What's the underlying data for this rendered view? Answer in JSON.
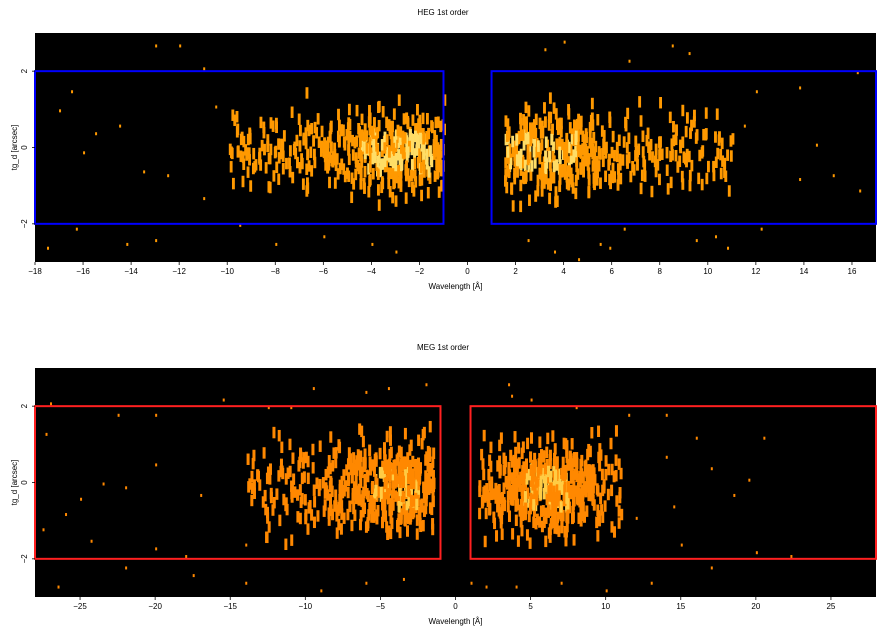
{
  "chart_data": [
    {
      "type": "heatmap",
      "title": "HEG 1st order",
      "xlabel": "Wavelength [Å]",
      "ylabel": "tg_d [arcsec]",
      "xlim": [
        -18,
        17
      ],
      "ylim": [
        -3,
        3
      ],
      "xticks": [
        -18,
        -16,
        -14,
        -12,
        -10,
        -8,
        -6,
        -4,
        -2,
        0,
        2,
        4,
        6,
        8,
        10,
        12,
        14,
        16
      ],
      "yticks": [
        -2,
        0,
        2
      ],
      "colors": {
        "background": "#000000",
        "region": "#0000ff",
        "counts_low": "#ff9900",
        "counts_high": "#ffdd66"
      },
      "regions": [
        {
          "x": [
            -18,
            -1
          ],
          "y": [
            -2,
            2
          ]
        },
        {
          "x": [
            1,
            17
          ],
          "y": [
            -2,
            2
          ]
        }
      ],
      "counts": {
        "clusters": [
          {
            "x_range": [
              -10,
              -1
            ],
            "y_range": [
              -1.2,
              1.2
            ],
            "peak_x": -3,
            "density": 0.55
          },
          {
            "x_range": [
              1.5,
              11
            ],
            "y_range": [
              -1.2,
              1.2
            ],
            "peak_x": 3,
            "density": 0.55
          }
        ],
        "sparse_points": [
          [
            -13,
            2.7
          ],
          [
            -12,
            2.7
          ],
          [
            -11,
            2.1
          ],
          [
            -16.5,
            1.5
          ],
          [
            -17,
            1.0
          ],
          [
            -14.5,
            0.6
          ],
          [
            -16,
            -0.1
          ],
          [
            -13.5,
            -0.6
          ],
          [
            -12.5,
            -0.7
          ],
          [
            -11,
            -1.3
          ],
          [
            -9.5,
            -2.0
          ],
          [
            -16.3,
            -2.1
          ],
          [
            -14.2,
            -2.5
          ],
          [
            -13,
            -2.4
          ],
          [
            -17.5,
            -2.6
          ],
          [
            -8,
            -2.5
          ],
          [
            -3,
            -2.7
          ],
          [
            -4,
            -2.5
          ],
          [
            -6,
            -2.3
          ],
          [
            -10.5,
            1.1
          ],
          [
            -15.5,
            0.4
          ],
          [
            4,
            2.8
          ],
          [
            3.2,
            2.6
          ],
          [
            6.7,
            2.3
          ],
          [
            8.5,
            2.7
          ],
          [
            9.2,
            2.5
          ],
          [
            12,
            1.5
          ],
          [
            13.8,
            1.6
          ],
          [
            16.2,
            2.0
          ],
          [
            11.5,
            0.6
          ],
          [
            14.5,
            0.1
          ],
          [
            15.2,
            -0.7
          ],
          [
            13.8,
            -0.8
          ],
          [
            16.3,
            -1.1
          ],
          [
            10.3,
            -2.3
          ],
          [
            9.5,
            -2.4
          ],
          [
            10.8,
            -2.6
          ],
          [
            12.2,
            -2.1
          ],
          [
            6.5,
            -2.1
          ],
          [
            5.5,
            -2.5
          ],
          [
            5.9,
            -2.6
          ],
          [
            4.6,
            -2.9
          ],
          [
            3.6,
            -2.7
          ],
          [
            2.5,
            -2.4
          ]
        ]
      }
    },
    {
      "type": "heatmap",
      "title": "MEG 1st order",
      "xlabel": "Wavelength [Å]",
      "ylabel": "tg_d [arcsec]",
      "xlim": [
        -28,
        28
      ],
      "ylim": [
        -3,
        3
      ],
      "xticks": [
        -25,
        -20,
        -15,
        -10,
        -5,
        0,
        5,
        10,
        15,
        20,
        25
      ],
      "yticks": [
        -2,
        0,
        2
      ],
      "colors": {
        "background": "#000000",
        "region": "#ff2020",
        "counts_low": "#ff8800",
        "counts_high": "#ffcc44"
      },
      "regions": [
        {
          "x": [
            -28,
            -1
          ],
          "y": [
            -2,
            2
          ]
        },
        {
          "x": [
            1,
            28
          ],
          "y": [
            -2,
            2
          ]
        }
      ],
      "counts": {
        "clusters": [
          {
            "x_range": [
              -14,
              -1.5
            ],
            "y_range": [
              -1.3,
              1.3
            ],
            "peak_x": -4,
            "density": 0.5
          },
          {
            "x_range": [
              1.5,
              11
            ],
            "y_range": [
              -1.3,
              1.3
            ],
            "peak_x": 6,
            "density": 0.5
          }
        ],
        "sparse_points": [
          [
            -27,
            2.1
          ],
          [
            -27.3,
            1.3
          ],
          [
            -22.5,
            1.8
          ],
          [
            -20,
            1.8
          ],
          [
            -15.5,
            2.2
          ],
          [
            -12.5,
            2.0
          ],
          [
            -20,
            0.5
          ],
          [
            -23.5,
            0.0
          ],
          [
            -25,
            -0.4
          ],
          [
            -22,
            -0.1
          ],
          [
            -26,
            -0.8
          ],
          [
            -27.5,
            -1.2
          ],
          [
            -24.3,
            -1.5
          ],
          [
            -20,
            -1.7
          ],
          [
            -18,
            -1.9
          ],
          [
            -17,
            -0.3
          ],
          [
            -14,
            -1.6
          ],
          [
            -26.5,
            -2.7
          ],
          [
            -22,
            -2.2
          ],
          [
            -17.5,
            -2.4
          ],
          [
            -14,
            -2.6
          ],
          [
            -9,
            -2.8
          ],
          [
            -6,
            -2.6
          ],
          [
            -3.5,
            -2.5
          ],
          [
            -9.5,
            2.5
          ],
          [
            -6,
            2.4
          ],
          [
            -4.5,
            2.5
          ],
          [
            -2,
            2.6
          ],
          [
            -11,
            2.0
          ],
          [
            3.5,
            2.6
          ],
          [
            5,
            2.2
          ],
          [
            3.7,
            2.3
          ],
          [
            8,
            2.0
          ],
          [
            11.5,
            1.8
          ],
          [
            14,
            1.8
          ],
          [
            16,
            1.2
          ],
          [
            20.5,
            1.2
          ],
          [
            19.5,
            0.1
          ],
          [
            18.5,
            -0.3
          ],
          [
            14.5,
            -0.6
          ],
          [
            12,
            -0.9
          ],
          [
            15,
            -1.6
          ],
          [
            20,
            -1.8
          ],
          [
            22.3,
            -1.9
          ],
          [
            17,
            -2.2
          ],
          [
            13,
            -2.6
          ],
          [
            10,
            -2.8
          ],
          [
            7,
            -2.6
          ],
          [
            4,
            -2.7
          ],
          [
            2,
            -2.7
          ],
          [
            1,
            -2.6
          ],
          [
            14,
            0.7
          ],
          [
            17,
            0.4
          ]
        ]
      }
    }
  ]
}
